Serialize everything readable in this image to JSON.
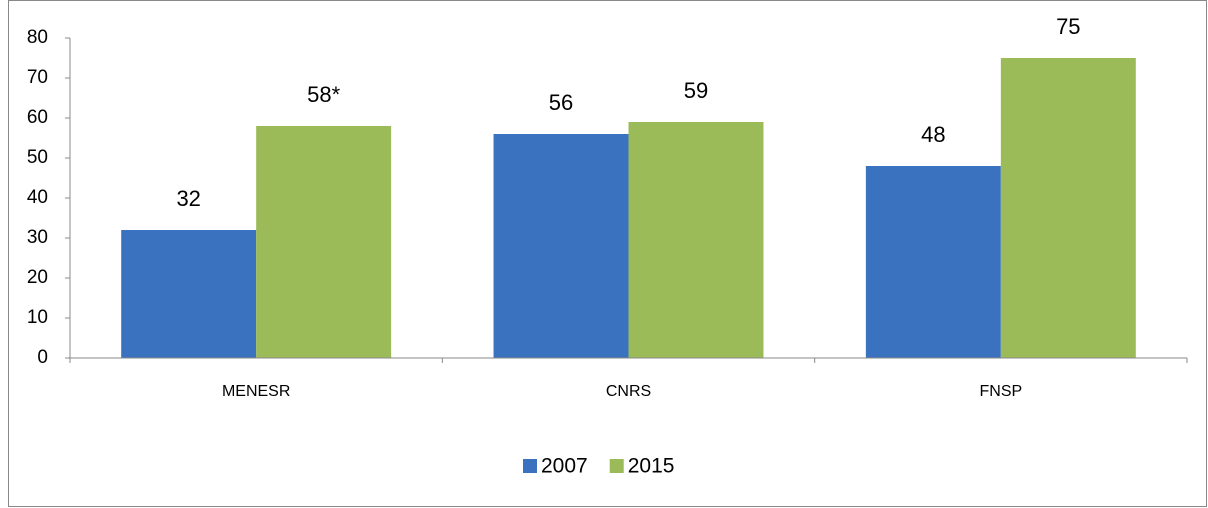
{
  "chart_data": {
    "type": "bar",
    "categories": [
      "MENESR",
      "CNRS",
      "FNSP"
    ],
    "series": [
      {
        "name": "2007",
        "color": "#3a72c0",
        "values": [
          32,
          56,
          48
        ]
      },
      {
        "name": "2015",
        "color": "#9bbb59",
        "values": [
          58,
          59,
          75
        ],
        "value_labels": [
          "58*",
          "59",
          "75"
        ]
      }
    ],
    "ylim": [
      0,
      80
    ],
    "yticks": [
      0,
      10,
      20,
      30,
      40,
      50,
      60,
      70,
      80
    ],
    "grid": false,
    "legend": "bottom"
  }
}
